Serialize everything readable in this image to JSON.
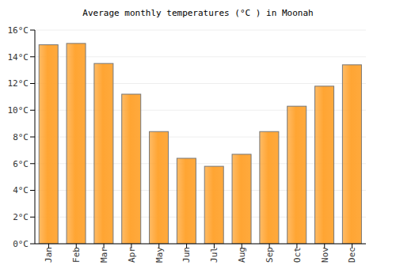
{
  "chart_data": {
    "type": "bar",
    "title": "Average monthly temperatures (°C ) in Moonah",
    "categories": [
      "Jan",
      "Feb",
      "Mar",
      "Apr",
      "May",
      "Jun",
      "Jul",
      "Aug",
      "Sep",
      "Oct",
      "Nov",
      "Dec"
    ],
    "values": [
      14.9,
      15.0,
      13.5,
      11.2,
      8.4,
      6.4,
      5.8,
      6.7,
      8.4,
      10.3,
      11.8,
      13.4
    ],
    "color": "#ffa533",
    "ylim": [
      0,
      16
    ],
    "yticks": [
      {
        "value": 0,
        "label": "0°C"
      },
      {
        "value": 2,
        "label": "2°C"
      },
      {
        "value": 4,
        "label": "4°C"
      },
      {
        "value": 6,
        "label": "6°C"
      },
      {
        "value": 8,
        "label": "8°C"
      },
      {
        "value": 10,
        "label": "10°C"
      },
      {
        "value": 12,
        "label": "12°C"
      },
      {
        "value": 14,
        "label": "14°C"
      },
      {
        "value": 16,
        "label": "16°C"
      }
    ],
    "grid": true
  }
}
